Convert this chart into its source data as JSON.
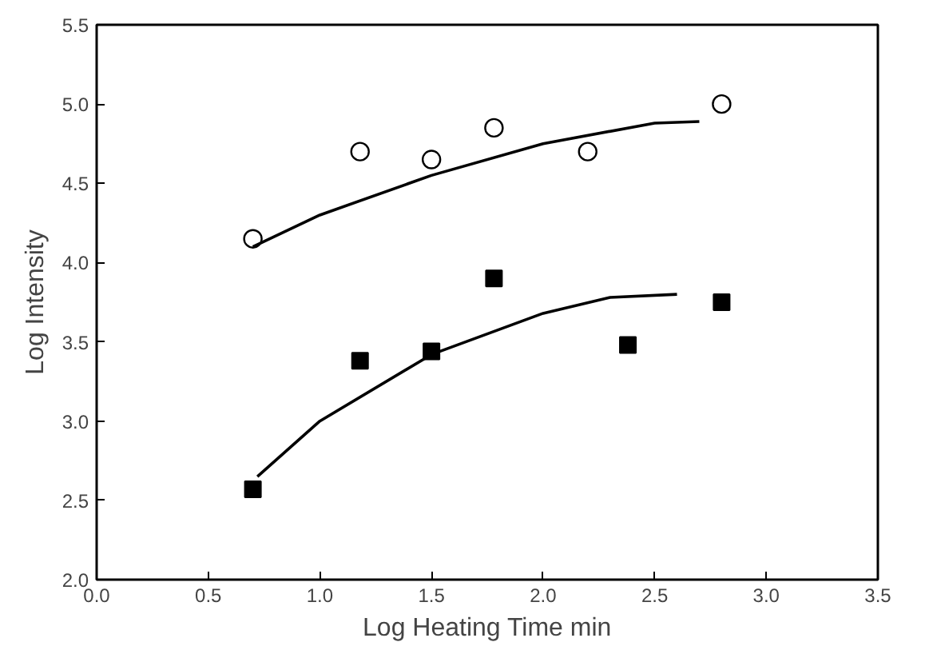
{
  "chart_data": {
    "type": "scatter",
    "xlabel": "Log Heating Time min",
    "ylabel": "Log Intensity",
    "xlim": [
      0,
      3.5
    ],
    "ylim": [
      2,
      5.5
    ],
    "xticks": [
      {
        "value": 0,
        "label": "0.0"
      },
      {
        "value": 0.5,
        "label": "0.5"
      },
      {
        "value": 1,
        "label": "1.0"
      },
      {
        "value": 1.5,
        "label": "1.5"
      },
      {
        "value": 2,
        "label": "2.0"
      },
      {
        "value": 2.5,
        "label": "2.5"
      },
      {
        "value": 3,
        "label": "3.0"
      },
      {
        "value": 3.5,
        "label": "3.5"
      }
    ],
    "yticks": [
      {
        "value": 2,
        "label": "2.0"
      },
      {
        "value": 2.5,
        "label": "2.5"
      },
      {
        "value": 3,
        "label": "3.0"
      },
      {
        "value": 3.5,
        "label": "3.5"
      },
      {
        "value": 4,
        "label": "4.0"
      },
      {
        "value": 4.5,
        "label": "4.5"
      },
      {
        "value": 5,
        "label": "5.0"
      },
      {
        "value": 5.5,
        "label": "5.5"
      }
    ],
    "grid": false,
    "series": [
      {
        "marker": "circle",
        "color": "#000000",
        "x": [
          0.7,
          1.18,
          1.5,
          1.78,
          2.2,
          2.8
        ],
        "values": [
          4.15,
          4.7,
          4.65,
          4.85,
          4.7,
          5.0
        ]
      },
      {
        "marker": "square",
        "color": "#000000",
        "x": [
          0.7,
          1.18,
          1.5,
          1.78,
          2.38,
          2.8
        ],
        "values": [
          2.57,
          3.38,
          3.44,
          3.9,
          3.48,
          3.75
        ]
      },
      {
        "type": "line",
        "line_style": "solid",
        "color": "#000000",
        "x": [
          0.7,
          1.0,
          1.5,
          2.0,
          2.5,
          2.7
        ],
        "values": [
          4.1,
          4.3,
          4.55,
          4.75,
          4.88,
          4.89
        ]
      },
      {
        "type": "line",
        "line_style": "solid",
        "color": "#000000",
        "x": [
          0.72,
          1.0,
          1.5,
          2.0,
          2.3,
          2.6
        ],
        "values": [
          2.65,
          3.0,
          3.42,
          3.68,
          3.78,
          3.8
        ]
      }
    ]
  }
}
